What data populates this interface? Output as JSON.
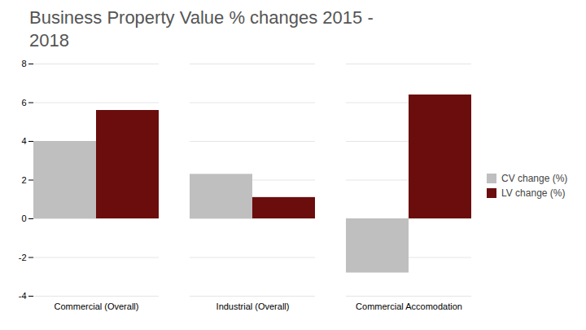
{
  "chart_data": {
    "type": "bar",
    "title": "Business Property Value % changes 2015 -\n2018",
    "categories": [
      "Commercial (Overall)",
      "Industrial (Overall)",
      "Commercial Accomodation"
    ],
    "series": [
      {
        "name": "CV change (%)",
        "color": "#c0bfbf",
        "values": [
          4.0,
          2.3,
          -2.8
        ]
      },
      {
        "name": "LV change (%)",
        "color": "#6b0d0d",
        "values": [
          5.6,
          1.1,
          6.4
        ]
      }
    ],
    "ylim": [
      -4,
      8
    ],
    "yticks": [
      -4,
      -2,
      0,
      2,
      4,
      6,
      8
    ],
    "grid": true,
    "legend": "right"
  }
}
